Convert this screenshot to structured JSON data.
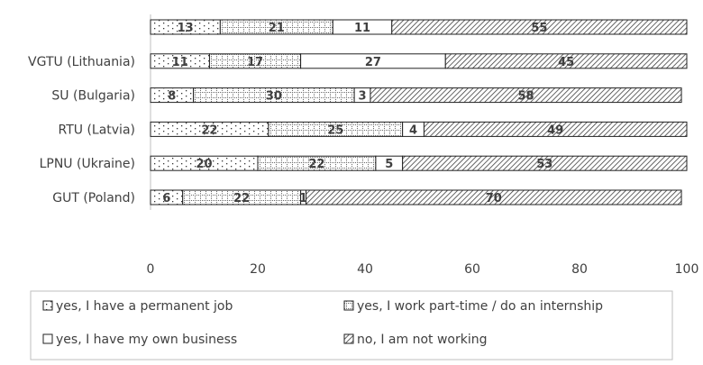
{
  "chart_data": {
    "type": "bar",
    "orientation": "horizontal",
    "stacked": true,
    "categories": [
      "",
      "VGTU (Lithuania)",
      "SU (Bulgaria)",
      "RTU (Latvia)",
      "LPNU (Ukraine)",
      "GUT (Poland)"
    ],
    "series": [
      {
        "name": "yes, I have a permanent job",
        "values": [
          13,
          11,
          8,
          22,
          20,
          6
        ]
      },
      {
        "name": "yes, I work part-time / do an internship",
        "values": [
          21,
          17,
          30,
          25,
          22,
          22
        ]
      },
      {
        "name": "yes, I have my own business",
        "values": [
          11,
          27,
          3,
          4,
          5,
          1
        ]
      },
      {
        "name": "no, I am not working",
        "values": [
          55,
          45,
          58,
          49,
          53,
          70
        ]
      }
    ],
    "xlim": [
      0,
      100
    ],
    "xticks": [
      0,
      20,
      40,
      60,
      80,
      100
    ],
    "legend_position": "bottom",
    "grid": false
  },
  "colors": {
    "outline": "#222222",
    "text": "#404040",
    "axis": "#bfbfbf",
    "fill": "#ffffff"
  }
}
